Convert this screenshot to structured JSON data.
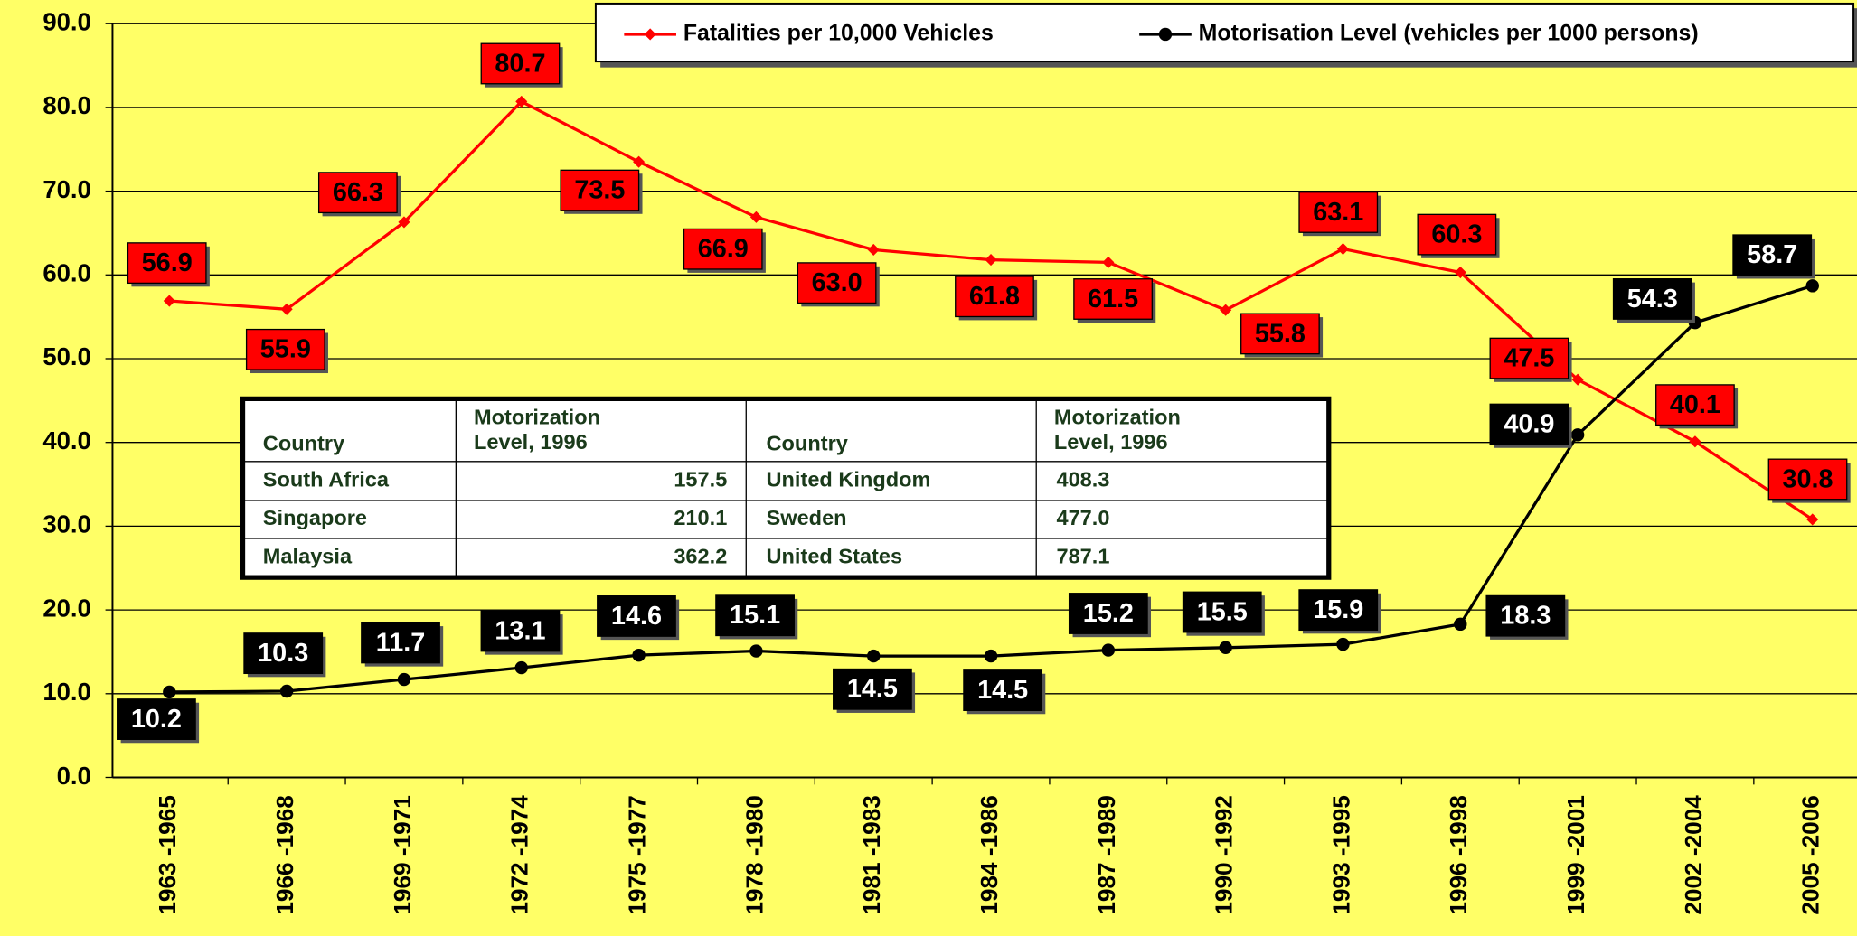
{
  "chart_data": {
    "type": "line",
    "categories": [
      "1963 -1965",
      "1966 -1968",
      "1969 -1971",
      "1972 -1974",
      "1975 -1977",
      "1978 -1980",
      "1981 -1983",
      "1984 -1986",
      "1987 -1989",
      "1990 -1992",
      "1993 -1995",
      "1996 -1998",
      "1999 -2001",
      "2002 -2004",
      "2005 -2006"
    ],
    "series": [
      {
        "name": "Fatalities per 10,000 Vehicles",
        "color": "#ff0000",
        "values": [
          56.9,
          55.9,
          66.3,
          80.7,
          73.5,
          66.9,
          63.0,
          61.8,
          61.5,
          55.8,
          63.1,
          60.3,
          47.5,
          40.1,
          30.8
        ],
        "value_labels": [
          "56.9",
          "55.9",
          "66.3",
          "80.7",
          "73.5",
          "66.9",
          "63.0",
          "61.8",
          "61.5",
          "55.8",
          "63.1",
          "60.3",
          "47.5",
          "40.1",
          "30.8"
        ]
      },
      {
        "name": "Motorisation Level (vehicles per 1000 persons)",
        "color": "#000000",
        "values": [
          10.2,
          10.3,
          11.7,
          13.1,
          14.6,
          15.1,
          14.5,
          14.5,
          15.2,
          15.5,
          15.9,
          18.3,
          40.9,
          54.3,
          58.7
        ],
        "value_labels": [
          "10.2",
          "10.3",
          "11.7",
          "13.1",
          "14.6",
          "15.1",
          "14.5",
          "14.5",
          "15.2",
          "15.5",
          "15.9",
          "18.3",
          "40.9",
          "54.3",
          "58.7"
        ]
      }
    ],
    "ylim": [
      0,
      90
    ],
    "yticks": [
      {
        "value": 0,
        "label": "0.0"
      },
      {
        "value": 10,
        "label": "10.0"
      },
      {
        "value": 20,
        "label": "20.0"
      },
      {
        "value": 30,
        "label": "30.0"
      },
      {
        "value": 40,
        "label": "40.0"
      },
      {
        "value": 50,
        "label": "50.0"
      },
      {
        "value": 60,
        "label": "60.0"
      },
      {
        "value": 70,
        "label": "70.0"
      },
      {
        "value": 80,
        "label": "80.0"
      },
      {
        "value": 90,
        "label": "90.0"
      }
    ],
    "grid": true,
    "legend": "top-right",
    "table": {
      "header": [
        "Country",
        "Motorization Level, 1996",
        "Country",
        "Motorization Level, 1996"
      ],
      "rows": [
        [
          "South Africa",
          "157.5",
          "United Kingdom",
          "408.3"
        ],
        [
          "Singapore",
          "210.1",
          "Sweden",
          "477.0"
        ],
        [
          "Malaysia",
          "362.2",
          "United States",
          "787.1"
        ]
      ]
    }
  }
}
